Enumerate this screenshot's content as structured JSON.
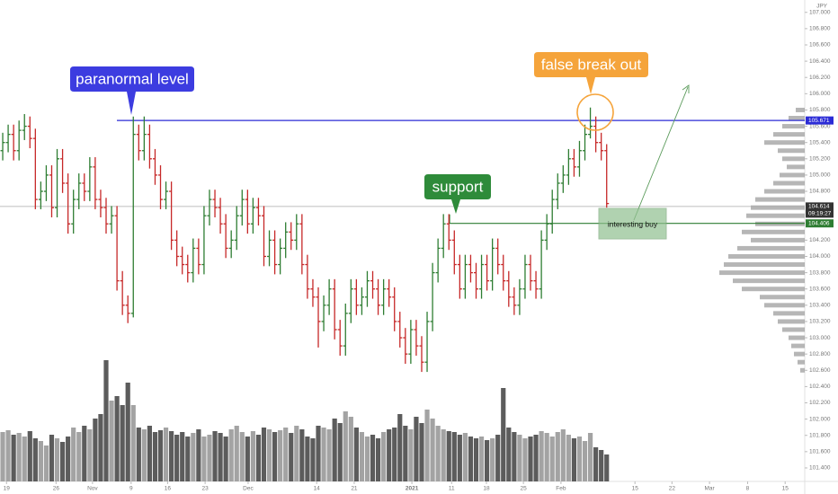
{
  "chart_data": {
    "type": "ohlc",
    "currency": "JPY",
    "xlim": [
      -0.5,
      147.4
    ],
    "xticks": [
      {
        "value": 0.7,
        "label": "19"
      },
      {
        "value": 9.8,
        "label": "26"
      },
      {
        "value": 16.5,
        "label": "Nov"
      },
      {
        "value": 23.6,
        "label": "9"
      },
      {
        "value": 30.3,
        "label": "16"
      },
      {
        "value": 37.2,
        "label": "23"
      },
      {
        "value": 45.1,
        "label": "Dec"
      },
      {
        "value": 57.7,
        "label": "14"
      },
      {
        "value": 64.6,
        "label": "21"
      },
      {
        "value": 75.2,
        "label": "2021"
      },
      {
        "value": 82.5,
        "label": "11"
      },
      {
        "value": 88.9,
        "label": "18"
      },
      {
        "value": 95.7,
        "label": "25"
      },
      {
        "value": 102.6,
        "label": "Feb"
      },
      {
        "value": 116.2,
        "label": "15"
      },
      {
        "value": 123.0,
        "label": "22"
      },
      {
        "value": 129.9,
        "label": "Mar"
      },
      {
        "value": 136.9,
        "label": "8"
      },
      {
        "value": 143.8,
        "label": "15"
      }
    ],
    "ylim": [
      101.234,
      107.152
    ],
    "yticks": [
      {
        "value": 107.0,
        "label": "107.000"
      },
      {
        "value": 106.8,
        "label": "106.800"
      },
      {
        "value": 106.6,
        "label": "106.600"
      },
      {
        "value": 106.4,
        "label": "106.400"
      },
      {
        "value": 106.2,
        "label": "106.200"
      },
      {
        "value": 106.0,
        "label": "106.000"
      },
      {
        "value": 105.8,
        "label": "105.800"
      },
      {
        "value": 105.6,
        "label": "105.600"
      },
      {
        "value": 105.4,
        "label": "105.400"
      },
      {
        "value": 105.2,
        "label": "105.200"
      },
      {
        "value": 105.0,
        "label": "105.000"
      },
      {
        "value": 104.8,
        "label": "104.800"
      },
      {
        "value": 104.2,
        "label": "104.200"
      },
      {
        "value": 104.0,
        "label": "104.000"
      },
      {
        "value": 103.8,
        "label": "103.800"
      },
      {
        "value": 103.6,
        "label": "103.600"
      },
      {
        "value": 103.4,
        "label": "103.400"
      },
      {
        "value": 103.2,
        "label": "103.200"
      },
      {
        "value": 103.0,
        "label": "103.000"
      },
      {
        "value": 102.8,
        "label": "102.800"
      },
      {
        "value": 102.6,
        "label": "102.600"
      },
      {
        "value": 102.4,
        "label": "102.400"
      },
      {
        "value": 102.2,
        "label": "102.200"
      },
      {
        "value": 102.0,
        "label": "102.000"
      },
      {
        "value": 101.8,
        "label": "101.800"
      },
      {
        "value": 101.6,
        "label": "101.600"
      },
      {
        "value": 101.4,
        "label": "101.400"
      }
    ],
    "up_color": "#2e7d32",
    "down_color": "#c62828",
    "values": [
      [
        105.3,
        105.52,
        105.18,
        105.4
      ],
      [
        105.4,
        105.62,
        105.28,
        105.5
      ],
      [
        105.5,
        105.62,
        105.18,
        105.3
      ],
      [
        105.3,
        105.67,
        105.18,
        105.55
      ],
      [
        105.55,
        105.75,
        105.43,
        105.6
      ],
      [
        105.6,
        105.72,
        105.33,
        105.45
      ],
      [
        105.45,
        105.57,
        104.58,
        104.7
      ],
      [
        104.7,
        104.92,
        104.58,
        104.8
      ],
      [
        104.8,
        105.12,
        104.68,
        105.0
      ],
      [
        105.0,
        105.12,
        104.48,
        104.6
      ],
      [
        104.6,
        105.32,
        104.48,
        105.2
      ],
      [
        105.2,
        105.32,
        104.78,
        104.9
      ],
      [
        104.9,
        105.02,
        104.28,
        104.4
      ],
      [
        104.4,
        104.82,
        104.28,
        104.7
      ],
      [
        104.7,
        105.02,
        104.58,
        104.9
      ],
      [
        104.9,
        105.02,
        104.68,
        104.8
      ],
      [
        104.8,
        105.22,
        104.68,
        105.1
      ],
      [
        105.1,
        105.22,
        104.58,
        104.7
      ],
      [
        104.7,
        104.82,
        104.48,
        104.6
      ],
      [
        104.6,
        104.72,
        104.28,
        104.4
      ],
      [
        104.4,
        104.62,
        104.28,
        104.5
      ],
      [
        104.5,
        104.62,
        103.58,
        103.7
      ],
      [
        103.7,
        103.82,
        103.28,
        103.4
      ],
      [
        103.4,
        103.52,
        103.18,
        103.3
      ],
      [
        103.3,
        105.72,
        103.25,
        105.5
      ],
      [
        105.5,
        105.62,
        105.18,
        105.3
      ],
      [
        105.3,
        105.72,
        105.18,
        105.5
      ],
      [
        105.5,
        105.62,
        105.08,
        105.2
      ],
      [
        105.2,
        105.32,
        104.88,
        105.0
      ],
      [
        105.0,
        105.12,
        104.58,
        104.7
      ],
      [
        104.7,
        104.92,
        104.58,
        104.8
      ],
      [
        104.8,
        104.92,
        104.08,
        104.2
      ],
      [
        104.2,
        104.32,
        103.88,
        104.0
      ],
      [
        104.0,
        104.12,
        103.78,
        103.9
      ],
      [
        103.9,
        104.02,
        103.68,
        103.8
      ],
      [
        103.8,
        104.22,
        103.68,
        104.1
      ],
      [
        104.1,
        104.22,
        103.78,
        103.9
      ],
      [
        103.9,
        104.62,
        103.78,
        104.5
      ],
      [
        104.5,
        104.82,
        104.38,
        104.7
      ],
      [
        104.7,
        104.82,
        104.48,
        104.6
      ],
      [
        104.6,
        104.72,
        104.28,
        104.4
      ],
      [
        104.4,
        104.52,
        103.98,
        104.1
      ],
      [
        104.1,
        104.32,
        103.98,
        104.2
      ],
      [
        104.2,
        104.62,
        104.08,
        104.5
      ],
      [
        104.5,
        104.82,
        104.38,
        104.7
      ],
      [
        104.7,
        104.82,
        104.28,
        104.4
      ],
      [
        104.4,
        104.72,
        104.28,
        104.6
      ],
      [
        104.6,
        104.72,
        104.38,
        104.5
      ],
      [
        104.5,
        104.62,
        103.88,
        104.0
      ],
      [
        104.0,
        104.32,
        103.88,
        104.2
      ],
      [
        104.2,
        104.32,
        103.78,
        103.9
      ],
      [
        103.9,
        104.22,
        103.78,
        104.1
      ],
      [
        104.1,
        104.42,
        103.98,
        104.3
      ],
      [
        104.3,
        104.42,
        104.08,
        104.2
      ],
      [
        104.2,
        104.52,
        104.08,
        104.4
      ],
      [
        104.4,
        104.52,
        103.78,
        103.9
      ],
      [
        103.9,
        104.02,
        103.48,
        103.6
      ],
      [
        103.6,
        103.72,
        103.38,
        103.5
      ],
      [
        103.5,
        103.62,
        102.88,
        103.2
      ],
      [
        103.2,
        103.52,
        103.08,
        103.4
      ],
      [
        103.4,
        103.72,
        103.28,
        103.6
      ],
      [
        103.6,
        103.72,
        102.98,
        103.1
      ],
      [
        103.1,
        103.22,
        102.78,
        102.9
      ],
      [
        102.9,
        103.42,
        102.78,
        103.3
      ],
      [
        103.3,
        103.72,
        103.18,
        103.6
      ],
      [
        103.6,
        103.72,
        103.28,
        103.4
      ],
      [
        103.4,
        103.62,
        103.28,
        103.5
      ],
      [
        103.5,
        103.82,
        103.38,
        103.7
      ],
      [
        103.7,
        103.82,
        103.48,
        103.6
      ],
      [
        103.6,
        103.72,
        103.28,
        103.4
      ],
      [
        103.4,
        103.72,
        103.28,
        103.6
      ],
      [
        103.6,
        103.72,
        103.38,
        103.5
      ],
      [
        103.5,
        103.62,
        103.08,
        103.2
      ],
      [
        103.2,
        103.32,
        102.88,
        103.0
      ],
      [
        103.0,
        103.12,
        102.68,
        102.8
      ],
      [
        102.8,
        103.22,
        102.68,
        103.1
      ],
      [
        103.1,
        103.22,
        102.78,
        102.9
      ],
      [
        102.9,
        103.02,
        102.58,
        102.7
      ],
      [
        102.7,
        103.32,
        102.58,
        103.2
      ],
      [
        103.2,
        103.92,
        103.08,
        103.8
      ],
      [
        103.8,
        104.22,
        103.68,
        104.1
      ],
      [
        104.1,
        104.52,
        103.98,
        104.4
      ],
      [
        104.4,
        104.52,
        104.08,
        104.2
      ],
      [
        104.2,
        104.32,
        103.78,
        103.9
      ],
      [
        103.9,
        104.02,
        103.48,
        103.6
      ],
      [
        103.6,
        104.02,
        103.48,
        103.9
      ],
      [
        103.9,
        104.02,
        103.68,
        103.8
      ],
      [
        103.8,
        103.92,
        103.48,
        103.6
      ],
      [
        103.6,
        104.02,
        103.48,
        103.9
      ],
      [
        103.9,
        104.02,
        103.58,
        103.7
      ],
      [
        103.7,
        104.22,
        103.58,
        104.1
      ],
      [
        104.1,
        104.22,
        103.78,
        103.9
      ],
      [
        103.9,
        104.02,
        103.58,
        103.7
      ],
      [
        103.7,
        103.82,
        103.38,
        103.5
      ],
      [
        103.5,
        103.62,
        103.28,
        103.4
      ],
      [
        103.4,
        103.72,
        103.28,
        103.6
      ],
      [
        103.6,
        104.02,
        103.48,
        103.9
      ],
      [
        103.9,
        104.02,
        103.58,
        103.7
      ],
      [
        103.7,
        103.82,
        103.48,
        103.6
      ],
      [
        103.6,
        104.32,
        103.48,
        104.2
      ],
      [
        104.2,
        104.52,
        104.08,
        104.4
      ],
      [
        104.4,
        104.82,
        104.28,
        104.7
      ],
      [
        104.7,
        105.02,
        104.58,
        104.9
      ],
      [
        104.9,
        105.12,
        104.78,
        105.0
      ],
      [
        105.0,
        105.32,
        104.88,
        105.2
      ],
      [
        105.2,
        105.32,
        104.98,
        105.1
      ],
      [
        105.1,
        105.42,
        104.98,
        105.3
      ],
      [
        105.3,
        105.62,
        105.18,
        105.5
      ],
      [
        105.5,
        105.83,
        105.45,
        105.6
      ],
      [
        105.6,
        105.72,
        105.28,
        105.4
      ],
      [
        105.4,
        105.52,
        105.18,
        105.3
      ],
      [
        105.3,
        105.38,
        104.6,
        104.65
      ]
    ],
    "volume": {
      "up_color": "#a3a3a3",
      "down_color": "#5c5c5c",
      "values": [
        55,
        57,
        52,
        54,
        50,
        56,
        48,
        45,
        40,
        52,
        48,
        44,
        50,
        60,
        55,
        62,
        58,
        70,
        75,
        135,
        90,
        95,
        85,
        110,
        85,
        60,
        58,
        62,
        55,
        57,
        60,
        56,
        52,
        55,
        50,
        54,
        58,
        50,
        52,
        56,
        54,
        50,
        58,
        62,
        55,
        50,
        56,
        52,
        60,
        58,
        55,
        57,
        60,
        54,
        62,
        58,
        50,
        48,
        62,
        60,
        58,
        70,
        65,
        78,
        72,
        60,
        55,
        50,
        52,
        48,
        55,
        58,
        60,
        75,
        62,
        58,
        72,
        65,
        80,
        70,
        62,
        58,
        56,
        55,
        52,
        54,
        50,
        48,
        50,
        46,
        48,
        52,
        104,
        60,
        55,
        52,
        48,
        50,
        52,
        56,
        54,
        50,
        55,
        58,
        52,
        48,
        50,
        45,
        54,
        38,
        35,
        30
      ]
    },
    "volume_profile": {
      "color": "#9e9e9e",
      "prices": [
        105.8,
        105.7,
        105.6,
        105.5,
        105.4,
        105.3,
        105.2,
        105.1,
        105.0,
        104.9,
        104.8,
        104.7,
        104.6,
        104.5,
        104.4,
        104.3,
        104.2,
        104.1,
        104.0,
        103.9,
        103.8,
        103.7,
        103.6,
        103.5,
        103.4,
        103.3,
        103.2,
        103.1,
        103.0,
        102.9,
        102.8,
        102.7,
        102.6
      ],
      "values": [
        10,
        18,
        25,
        35,
        45,
        30,
        25,
        20,
        28,
        35,
        45,
        55,
        60,
        65,
        55,
        70,
        60,
        75,
        85,
        90,
        95,
        80,
        70,
        50,
        45,
        35,
        30,
        25,
        18,
        15,
        12,
        8,
        5
      ]
    },
    "levels": [
      {
        "value": 105.671,
        "color": "#2b2bd6"
      },
      {
        "value": 104.406,
        "color": "#2e7d32"
      }
    ],
    "current_price": {
      "value": 104.614,
      "time": "09:19:27",
      "color": "#333333"
    },
    "annotations": [
      {
        "text": "paranormal level",
        "color": "#3c3ce0"
      },
      {
        "text": "false break out",
        "color": "#f5a43b"
      },
      {
        "text": "support",
        "color": "#2e8b3a"
      }
    ],
    "note": {
      "text": "interesting buy"
    }
  }
}
